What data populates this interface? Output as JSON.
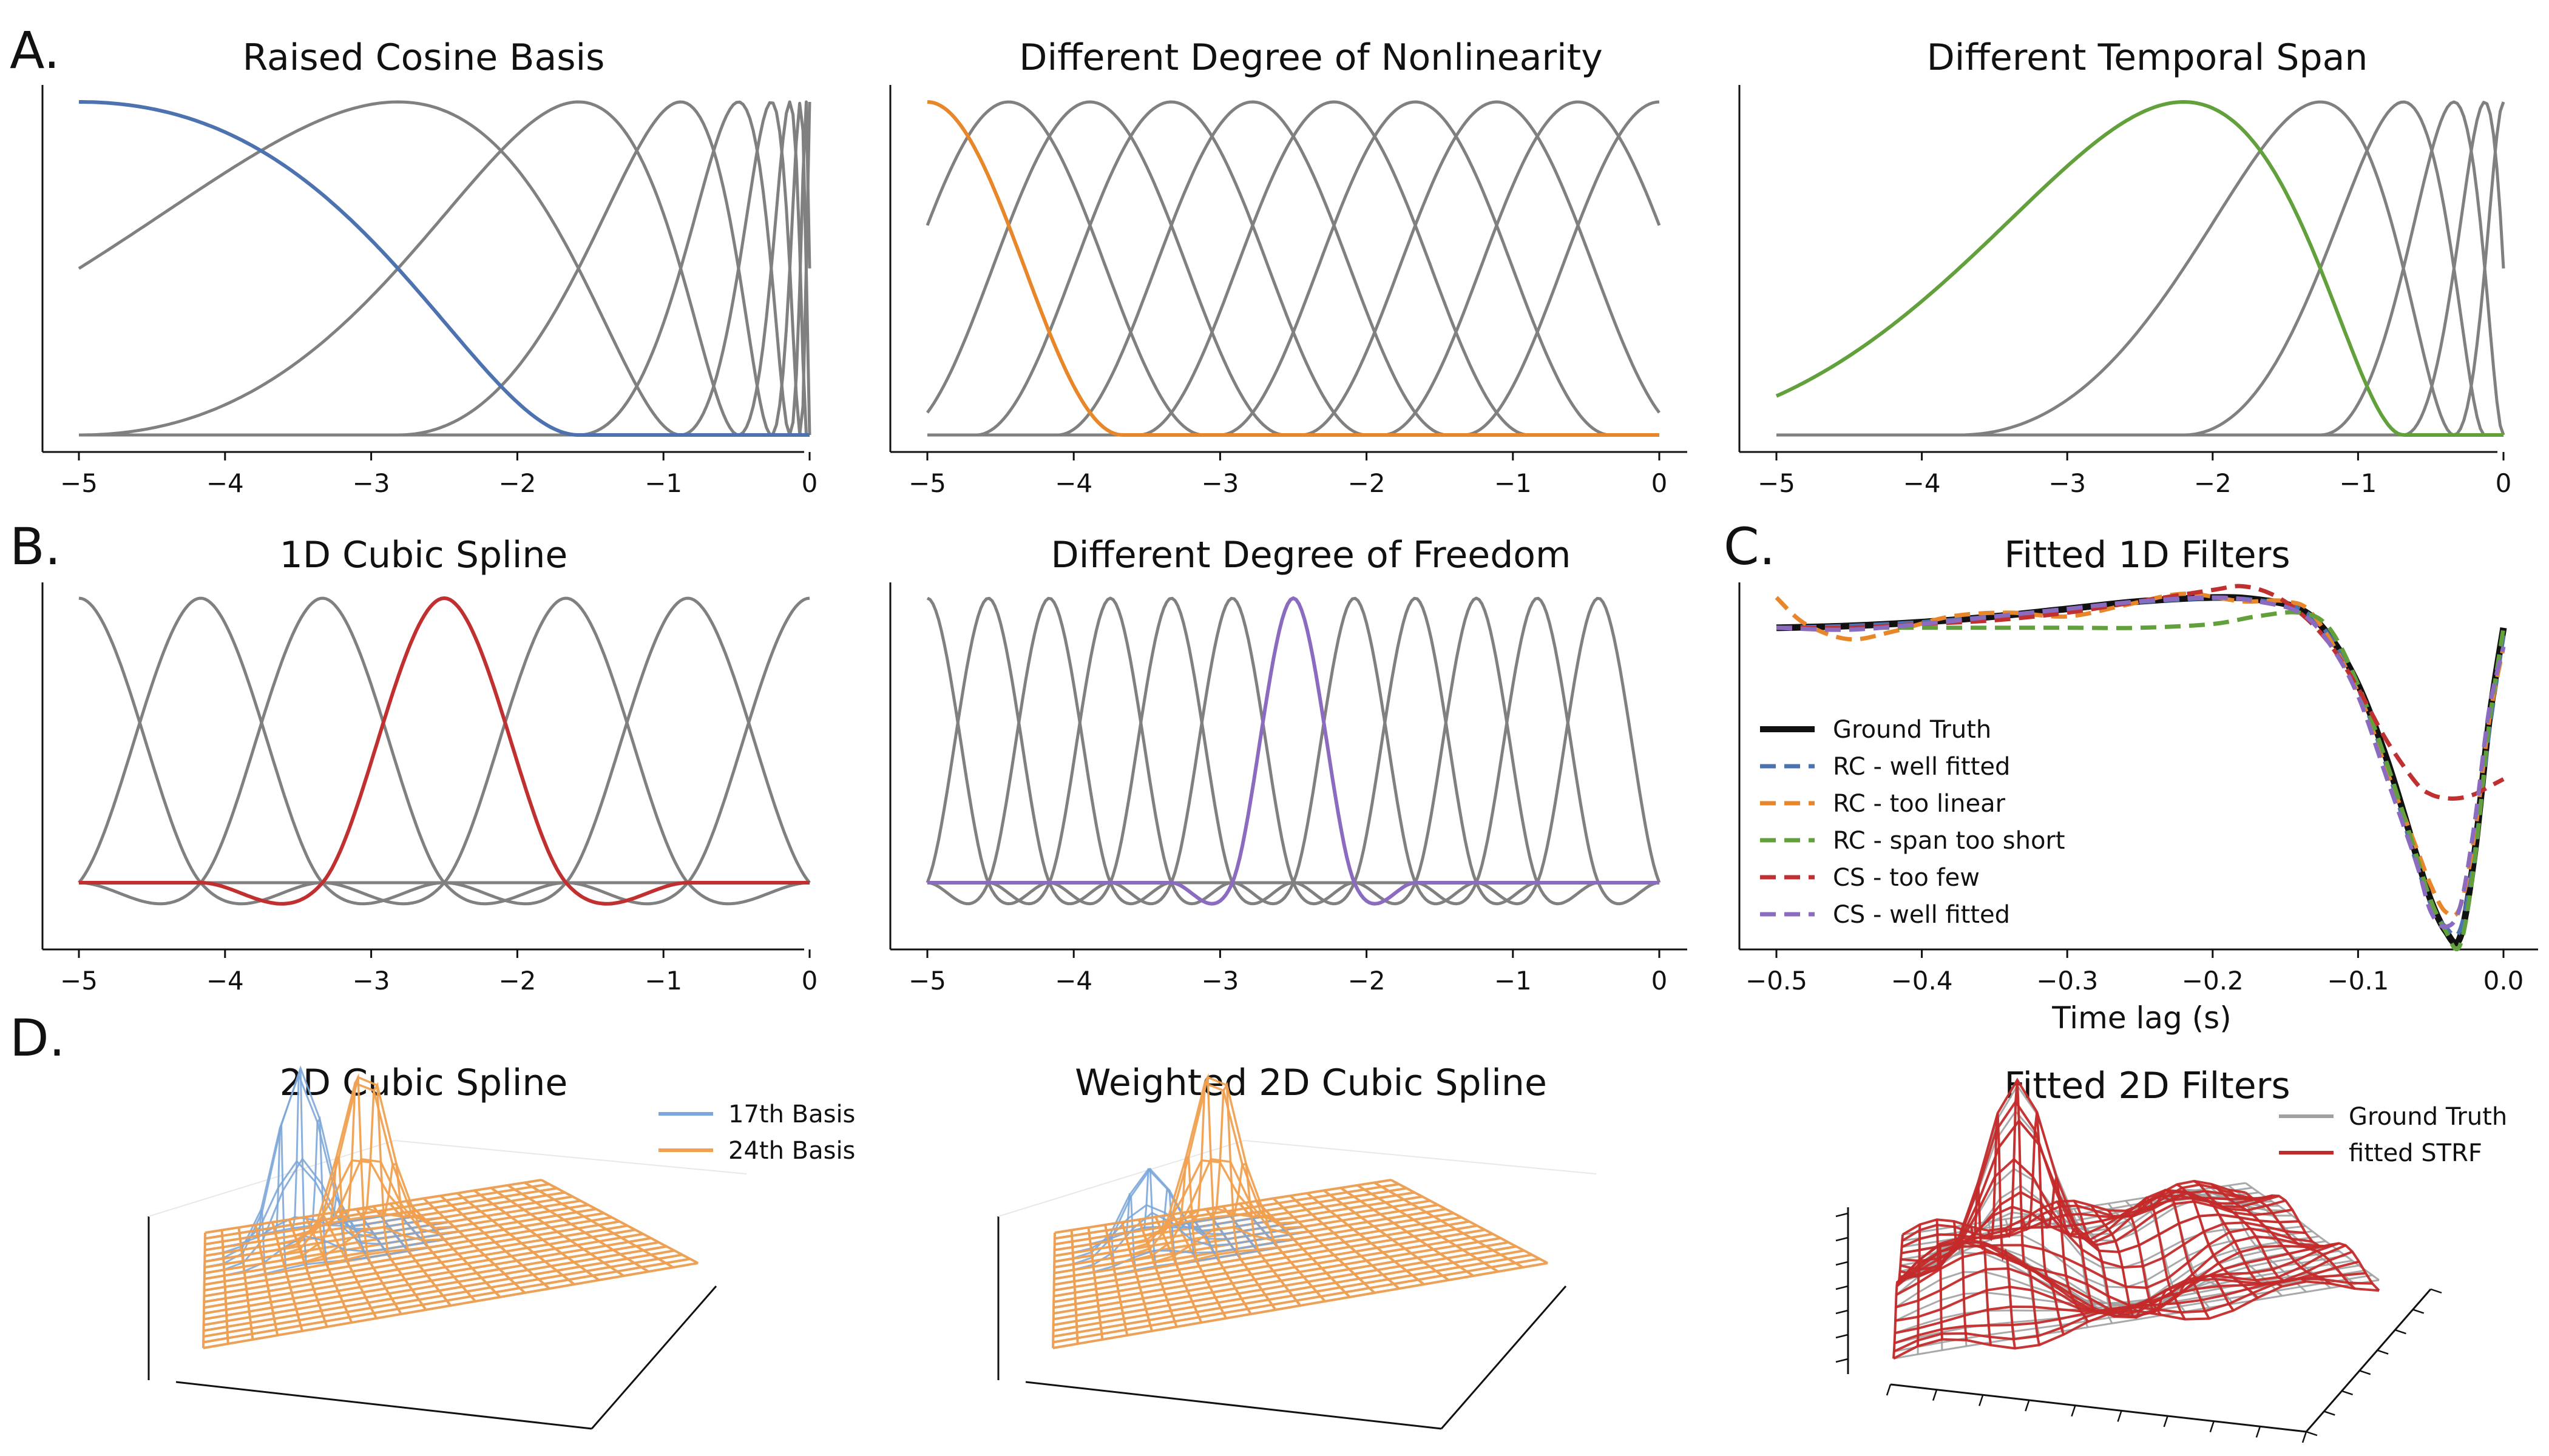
{
  "panel_letters": [
    "A.",
    "B.",
    "C.",
    "D."
  ],
  "colors": {
    "gray": "#808080",
    "blue": "#4c72b0",
    "orange": "#e8862a",
    "green": "#62a03c",
    "red": "#c03030",
    "purple": "#8a6bbf",
    "black": "#111111",
    "mesh_blue": "#7da7d9",
    "mesh_orange": "#f0a050",
    "mesh_gray": "#a0a0a0",
    "mesh_red": "#c42a2a"
  },
  "chart_data": [
    {
      "id": "raised-cosine",
      "type": "line",
      "title": "Raised Cosine Basis",
      "xlabel": "",
      "ylabel": "",
      "xlim": [
        -5,
        0
      ],
      "ylim": [
        0,
        1
      ],
      "xticks": [
        -5,
        -4,
        -3,
        -2,
        -1,
        0
      ],
      "xtick_labels": [
        "−5",
        "−4",
        "−3",
        "−2",
        "−1",
        "0"
      ],
      "n_basis": 10,
      "highlight_index": 0,
      "highlight_color": "blue",
      "basis": "log-raised-cosine"
    },
    {
      "id": "nonlinearity",
      "type": "line",
      "title": "Different Degree of Nonlinearity",
      "xlabel": "",
      "ylabel": "",
      "xlim": [
        -5,
        0
      ],
      "ylim": [
        0,
        1
      ],
      "xticks": [
        -5,
        -4,
        -3,
        -2,
        -1,
        0
      ],
      "xtick_labels": [
        "−5",
        "−4",
        "−3",
        "−2",
        "−1",
        "0"
      ],
      "n_basis": 10,
      "highlight_index": 0,
      "highlight_color": "orange",
      "basis": "linear-raised-cosine"
    },
    {
      "id": "temporal-span",
      "type": "line",
      "title": "Different Temporal Span",
      "xlabel": "",
      "ylabel": "",
      "xlim": [
        -5,
        0
      ],
      "ylim": [
        0,
        1
      ],
      "xticks": [
        -5,
        -4,
        -3,
        -2,
        -1,
        0
      ],
      "xtick_labels": [
        "−5",
        "−4",
        "−3",
        "−2",
        "−1",
        "0"
      ],
      "n_basis": 6,
      "highlight_index": 0,
      "highlight_color": "green",
      "basis": "short-span-raised-cosine"
    },
    {
      "id": "cubic-spline-1d",
      "type": "line",
      "title": "1D Cubic Spline",
      "xlabel": "",
      "ylabel": "",
      "xlim": [
        -5,
        0
      ],
      "xticks": [
        -5,
        -4,
        -3,
        -2,
        -1,
        0
      ],
      "xtick_labels": [
        "−5",
        "−4",
        "−3",
        "−2",
        "−1",
        "0"
      ],
      "knot_spacing": 0.8333,
      "highlight_center": -2.5,
      "highlight_color": "red",
      "basis": "cardinal-cubic-spline"
    },
    {
      "id": "degree-freedom",
      "type": "line",
      "title": "Different Degree of Freedom",
      "xlabel": "",
      "ylabel": "",
      "xlim": [
        -5,
        0
      ],
      "xticks": [
        -5,
        -4,
        -3,
        -2,
        -1,
        0
      ],
      "xtick_labels": [
        "−5",
        "−4",
        "−3",
        "−2",
        "−1",
        "0"
      ],
      "knot_spacing": 0.4167,
      "highlight_center": -2.5,
      "highlight_color": "purple",
      "basis": "cardinal-cubic-spline"
    },
    {
      "id": "fitted-1d",
      "type": "line",
      "title": "Fitted 1D Filters",
      "xlabel": "Time lag (s)",
      "ylabel": "",
      "xlim": [
        -0.5,
        0.0
      ],
      "ylim": [
        -0.85,
        0.12
      ],
      "xticks": [
        -0.5,
        -0.4,
        -0.3,
        -0.2,
        -0.1,
        0.0
      ],
      "xtick_labels": [
        "−0.5",
        "−0.4",
        "−0.3",
        "−0.2",
        "−0.1",
        "0.0"
      ],
      "legend_position": "middle-left",
      "series": [
        {
          "name": "Ground Truth",
          "color": "black",
          "dash": "solid",
          "x": [
            -0.5,
            -0.45,
            -0.4,
            -0.35,
            -0.3,
            -0.25,
            -0.2,
            -0.17,
            -0.14,
            -0.12,
            -0.1,
            -0.08,
            -0.06,
            -0.05,
            -0.04,
            -0.03,
            -0.02,
            -0.01,
            0.0
          ],
          "y": [
            0.0,
            0.005,
            0.015,
            0.03,
            0.05,
            0.07,
            0.08,
            0.075,
            0.05,
            -0.02,
            -0.15,
            -0.35,
            -0.6,
            -0.72,
            -0.8,
            -0.82,
            -0.6,
            -0.25,
            0.0
          ]
        },
        {
          "name": "RC - well fitted",
          "color": "blue",
          "dash": "dashed",
          "x": [
            -0.5,
            -0.45,
            -0.4,
            -0.35,
            -0.3,
            -0.25,
            -0.2,
            -0.17,
            -0.14,
            -0.12,
            -0.1,
            -0.08,
            -0.06,
            -0.05,
            -0.04,
            -0.03,
            -0.02,
            -0.01,
            0.0
          ],
          "y": [
            0.0,
            0.005,
            0.015,
            0.03,
            0.05,
            0.068,
            0.078,
            0.073,
            0.05,
            -0.02,
            -0.16,
            -0.37,
            -0.62,
            -0.73,
            -0.79,
            -0.8,
            -0.6,
            -0.28,
            -0.02
          ]
        },
        {
          "name": "RC - too linear",
          "color": "orange",
          "dash": "dashed",
          "x": [
            -0.5,
            -0.48,
            -0.45,
            -0.42,
            -0.38,
            -0.34,
            -0.3,
            -0.26,
            -0.22,
            -0.18,
            -0.15,
            -0.13,
            -0.1,
            -0.08,
            -0.06,
            -0.05,
            -0.04,
            -0.03,
            -0.02,
            -0.01,
            0.0
          ],
          "y": [
            0.08,
            0.01,
            -0.03,
            -0.01,
            0.03,
            0.04,
            0.03,
            0.06,
            0.09,
            0.07,
            0.07,
            0.03,
            -0.17,
            -0.38,
            -0.58,
            -0.68,
            -0.75,
            -0.74,
            -0.55,
            -0.25,
            -0.05
          ]
        },
        {
          "name": "RC - span too short",
          "color": "green",
          "dash": "dashed",
          "x": [
            -0.5,
            -0.4,
            -0.3,
            -0.25,
            -0.2,
            -0.17,
            -0.14,
            -0.12,
            -0.1,
            -0.08,
            -0.06,
            -0.05,
            -0.04,
            -0.03,
            -0.02,
            -0.01,
            0.0
          ],
          "y": [
            0.0,
            0.0,
            0.0,
            0.0,
            0.01,
            0.03,
            0.04,
            0.0,
            -0.15,
            -0.36,
            -0.6,
            -0.72,
            -0.8,
            -0.84,
            -0.62,
            -0.26,
            0.0
          ]
        },
        {
          "name": "CS - too few",
          "color": "red",
          "dash": "dashed",
          "x": [
            -0.5,
            -0.45,
            -0.4,
            -0.35,
            -0.3,
            -0.25,
            -0.2,
            -0.18,
            -0.16,
            -0.14,
            -0.12,
            -0.1,
            -0.08,
            -0.06,
            -0.05,
            -0.04,
            -0.03,
            -0.02,
            -0.01,
            0.0
          ],
          "y": [
            0.0,
            0.0,
            0.01,
            0.02,
            0.04,
            0.07,
            0.1,
            0.11,
            0.09,
            0.04,
            -0.04,
            -0.16,
            -0.3,
            -0.41,
            -0.44,
            -0.45,
            -0.45,
            -0.44,
            -0.42,
            -0.4
          ]
        },
        {
          "name": "CS - well fitted",
          "color": "purple",
          "dash": "dashed",
          "x": [
            -0.5,
            -0.45,
            -0.4,
            -0.35,
            -0.3,
            -0.25,
            -0.2,
            -0.17,
            -0.14,
            -0.12,
            -0.1,
            -0.08,
            -0.06,
            -0.05,
            -0.04,
            -0.03,
            -0.02,
            -0.01,
            0.0
          ],
          "y": [
            0.0,
            -0.005,
            0.01,
            0.03,
            0.05,
            0.07,
            0.08,
            0.07,
            0.04,
            -0.04,
            -0.18,
            -0.4,
            -0.62,
            -0.75,
            -0.79,
            -0.74,
            -0.52,
            -0.22,
            -0.05
          ]
        }
      ]
    },
    {
      "id": "cubic-spline-2d",
      "type": "surface",
      "title": "2D Cubic Spline",
      "grid": [
        20,
        20
      ],
      "legend_position": "top-right",
      "series": [
        {
          "name": "17th Basis",
          "color": "mesh_blue",
          "peak_u": 0.25,
          "peak_v": 0.72,
          "height": 1.0
        },
        {
          "name": "24th Basis",
          "color": "mesh_orange",
          "peak_u": 0.42,
          "peak_v": 0.72,
          "height": 0.95
        }
      ]
    },
    {
      "id": "weighted-2d",
      "type": "surface",
      "title": "Weighted 2D Cubic Spline",
      "grid": [
        20,
        20
      ],
      "series": [
        {
          "color": "mesh_blue",
          "peak_u": 0.25,
          "peak_v": 0.72,
          "height": 0.45
        },
        {
          "color": "mesh_orange",
          "peak_u": 0.42,
          "peak_v": 0.72,
          "height": 0.95
        }
      ]
    },
    {
      "id": "fitted-2d",
      "type": "surface",
      "title": "Fitted 2D Filters",
      "grid": [
        20,
        20
      ],
      "legend_position": "top-right",
      "series": [
        {
          "name": "Ground Truth",
          "color": "mesh_gray"
        },
        {
          "name": "fitted STRF",
          "color": "mesh_red"
        }
      ]
    }
  ]
}
